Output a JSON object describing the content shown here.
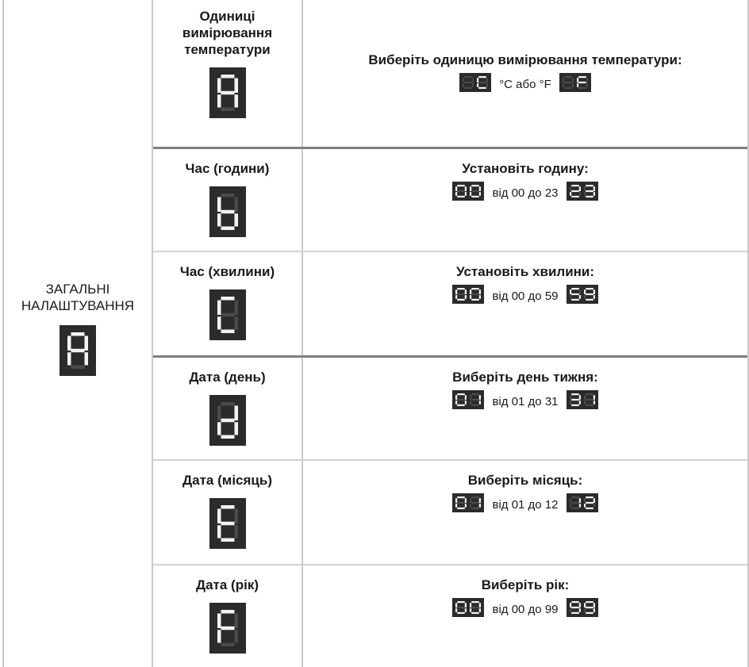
{
  "general_settings": {
    "label_line1": "ЗАГАЛЬНІ",
    "label_line2": "НАЛАШТУВАННЯ",
    "display": "A"
  },
  "rows": [
    {
      "name": "Одиниці вимірювання температури",
      "name_lines": [
        "Одиниці",
        "вимірювання",
        "температури"
      ],
      "display": "A",
      "instruction": "Виберіть одиницю вимірювання температури:",
      "range_text": "°C або °F",
      "from_display": "C",
      "to_display": "F"
    },
    {
      "name": "Час (години)",
      "display": "b",
      "instruction": "Установіть годину:",
      "range_text": "від 00 до 23",
      "from_display": "00",
      "to_display": "23"
    },
    {
      "name": "Час (хвилини)",
      "display": "C",
      "instruction": "Установіть хвилини:",
      "range_text": "від 00 до 59",
      "from_display": "00",
      "to_display": "59"
    },
    {
      "name": "Дата (день)",
      "display": "d",
      "instruction": "Виберіть день тижня:",
      "range_text": "від 01 до 31",
      "from_display": "01",
      "to_display": "31"
    },
    {
      "name": "Дата (місяць)",
      "display": "E",
      "instruction": "Виберіть місяць:",
      "range_text": "від 01 до 12",
      "from_display": "01",
      "to_display": "12"
    },
    {
      "name": "Дата (рік)",
      "display": "F",
      "instruction": "Виберіть рік:",
      "range_text": "від 00 до 99",
      "from_display": "00",
      "to_display": "99"
    }
  ],
  "colors": {
    "display_bg": "#2b2b2b",
    "segment_on": "#f2f2f2",
    "segment_off": "#4a4a4a"
  }
}
